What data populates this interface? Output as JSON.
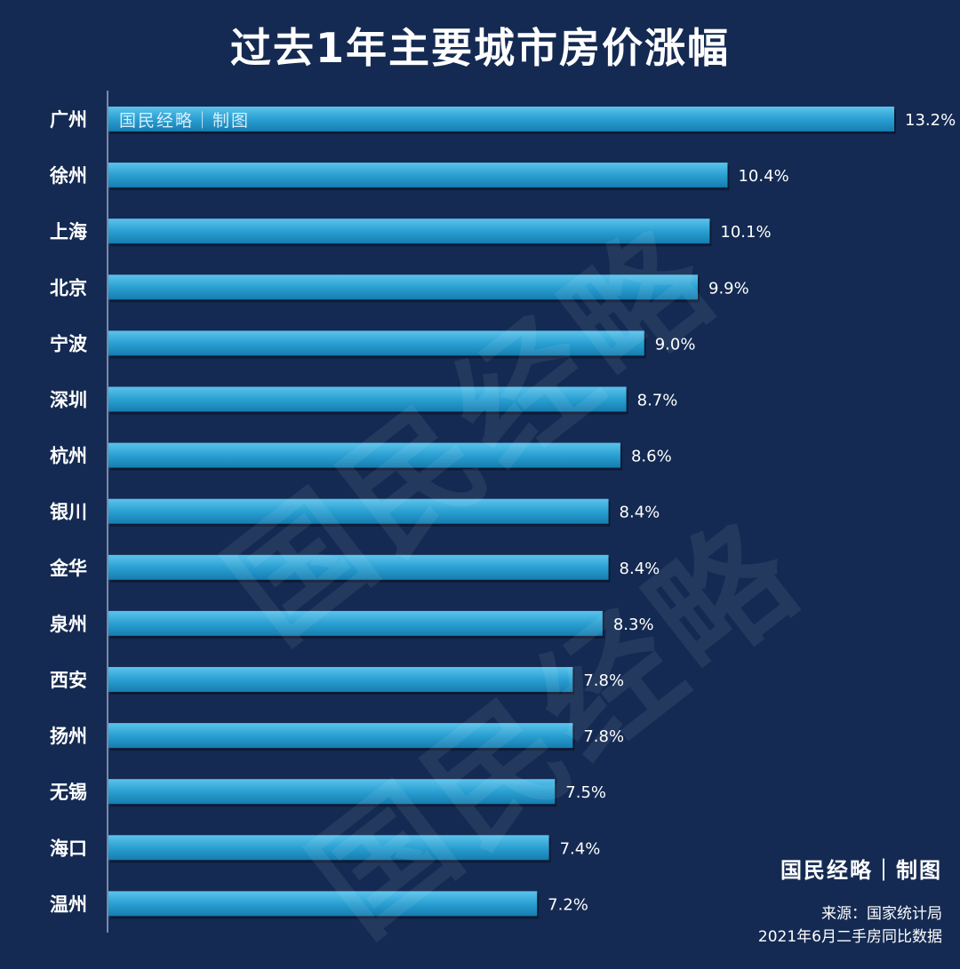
{
  "chart_data": {
    "type": "bar",
    "orientation": "horizontal",
    "title": "过去1年主要城市房价涨幅",
    "categories": [
      "广州",
      "徐州",
      "上海",
      "北京",
      "宁波",
      "深圳",
      "杭州",
      "银川",
      "金华",
      "泉州",
      "西安",
      "扬州",
      "无锡",
      "海口",
      "温州"
    ],
    "values": [
      13.2,
      10.4,
      10.1,
      9.9,
      9.0,
      8.7,
      8.6,
      8.4,
      8.4,
      8.3,
      7.8,
      7.8,
      7.5,
      7.4,
      7.2
    ],
    "labels": [
      "13.2%",
      "10.4%",
      "10.1%",
      "9.9%",
      "9.0%",
      "8.7%",
      "8.6%",
      "8.4%",
      "8.4%",
      "8.3%",
      "7.8%",
      "7.8%",
      "7.5%",
      "7.4%",
      "7.2%"
    ],
    "unit": "%",
    "xlim": [
      0,
      13.2
    ],
    "grid": false,
    "bar_color": "#2aa0d2",
    "background": "#142a52"
  },
  "watermark": "国民经略",
  "bar_stamp": "国民经略｜制图",
  "logo": "国民经略｜制图",
  "source": {
    "line1": "来源：国家统计局",
    "line2": "2021年6月二手房同比数据"
  }
}
